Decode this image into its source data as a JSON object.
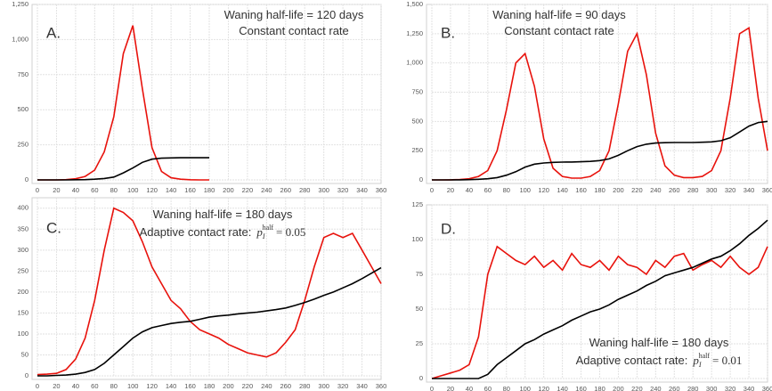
{
  "chart_data": [
    {
      "type": "line",
      "label": "A.",
      "annotations": [
        "Waning half-life = 120 days",
        "Constant contact rate"
      ],
      "x": [
        0,
        10,
        20,
        30,
        40,
        50,
        60,
        70,
        80,
        90,
        100,
        110,
        120,
        130,
        140,
        150,
        160,
        170,
        180
      ],
      "series": [
        {
          "color": "#e8120c",
          "values": [
            0,
            0,
            0,
            2,
            8,
            25,
            70,
            200,
            450,
            900,
            1100,
            650,
            230,
            60,
            15,
            5,
            1,
            0,
            0
          ]
        },
        {
          "color": "#000000",
          "values": [
            0,
            0,
            0,
            0,
            1,
            2,
            5,
            10,
            20,
            50,
            85,
            125,
            148,
            155,
            157,
            158,
            158,
            158,
            158
          ]
        }
      ],
      "xlim": [
        0,
        360
      ],
      "ylim": [
        0,
        1250
      ],
      "xticks": [
        0,
        20,
        40,
        60,
        80,
        100,
        120,
        140,
        160,
        180,
        200,
        220,
        240,
        260,
        280,
        300,
        320,
        340,
        360
      ],
      "yticks": [
        0,
        250,
        500,
        750,
        {
          "value": 1000,
          "label": "1,000"
        },
        {
          "value": 1250,
          "label": "1,250"
        }
      ],
      "grid": true
    },
    {
      "type": "line",
      "label": "B.",
      "annotations": [
        "Waning half-life = 90 days",
        "Constant contact rate"
      ],
      "x": [
        0,
        10,
        20,
        30,
        40,
        50,
        60,
        70,
        80,
        90,
        100,
        110,
        120,
        130,
        140,
        150,
        160,
        170,
        180,
        190,
        200,
        210,
        220,
        230,
        240,
        250,
        260,
        270,
        280,
        290,
        300,
        310,
        320,
        330,
        340,
        350,
        360
      ],
      "series": [
        {
          "color": "#e8120c",
          "values": [
            0,
            0,
            1,
            3,
            10,
            30,
            80,
            250,
            600,
            1000,
            1080,
            800,
            350,
            100,
            30,
            15,
            15,
            30,
            80,
            250,
            650,
            1100,
            1250,
            900,
            400,
            120,
            40,
            20,
            20,
            30,
            80,
            250,
            700,
            1250,
            1300,
            700,
            250
          ]
        },
        {
          "color": "#000000",
          "values": [
            0,
            0,
            0,
            1,
            2,
            5,
            10,
            20,
            40,
            70,
            110,
            135,
            145,
            150,
            152,
            153,
            155,
            158,
            165,
            180,
            210,
            250,
            285,
            305,
            315,
            318,
            320,
            320,
            320,
            322,
            325,
            335,
            360,
            410,
            460,
            490,
            500
          ]
        }
      ],
      "xlim": [
        0,
        360
      ],
      "ylim": [
        0,
        1500
      ],
      "xticks": [
        0,
        20,
        40,
        60,
        80,
        100,
        120,
        140,
        160,
        180,
        200,
        220,
        240,
        260,
        280,
        300,
        320,
        340,
        360
      ],
      "yticks": [
        0,
        250,
        500,
        750,
        {
          "value": 1000,
          "label": "1,000"
        },
        {
          "value": 1250,
          "label": "1,250"
        },
        {
          "value": 1500,
          "label": "1,500"
        }
      ],
      "grid": true
    },
    {
      "type": "line",
      "label": "C.",
      "annotations": [
        "Waning half-life = 180 days",
        "Adaptive contact rate:"
      ],
      "formula": {
        "base": "p",
        "sub": "I",
        "sup": "half",
        "rest": "= 0.05"
      },
      "x": [
        0,
        10,
        20,
        30,
        40,
        50,
        60,
        70,
        80,
        90,
        100,
        110,
        120,
        130,
        140,
        150,
        160,
        170,
        180,
        190,
        200,
        210,
        220,
        230,
        240,
        250,
        260,
        270,
        280,
        290,
        300,
        310,
        320,
        330,
        340,
        350,
        360
      ],
      "series": [
        {
          "color": "#e8120c",
          "values": [
            3,
            4,
            6,
            15,
            40,
            90,
            180,
            300,
            400,
            390,
            370,
            320,
            260,
            220,
            180,
            160,
            130,
            110,
            100,
            90,
            75,
            65,
            55,
            50,
            45,
            55,
            80,
            110,
            180,
            260,
            330,
            340,
            330,
            340,
            300,
            260,
            220
          ]
        },
        {
          "color": "#000000",
          "values": [
            0,
            0,
            1,
            2,
            4,
            8,
            15,
            30,
            50,
            70,
            90,
            105,
            115,
            120,
            125,
            128,
            130,
            135,
            140,
            143,
            145,
            148,
            150,
            152,
            155,
            158,
            162,
            168,
            175,
            183,
            192,
            200,
            210,
            220,
            232,
            245,
            258
          ]
        }
      ],
      "xlim": [
        0,
        360
      ],
      "ylim": [
        0,
        425
      ],
      "xticks": [
        0,
        20,
        40,
        60,
        80,
        100,
        120,
        140,
        160,
        180,
        200,
        220,
        240,
        260,
        280,
        300,
        320,
        340,
        360
      ],
      "yticks": [
        0,
        50,
        100,
        150,
        200,
        250,
        300,
        350,
        400
      ],
      "grid": true
    },
    {
      "type": "line",
      "label": "D.",
      "annotations": [
        "Waning half-life = 180 days",
        "Adaptive contact rate:"
      ],
      "formula": {
        "base": "p",
        "sub": "I",
        "sup": "half",
        "rest": "= 0.01"
      },
      "x": [
        0,
        10,
        20,
        30,
        40,
        50,
        60,
        70,
        80,
        90,
        100,
        110,
        120,
        130,
        140,
        150,
        160,
        170,
        180,
        190,
        200,
        210,
        220,
        230,
        240,
        250,
        260,
        270,
        280,
        290,
        300,
        310,
        320,
        330,
        340,
        350,
        360
      ],
      "series": [
        {
          "color": "#e8120c",
          "values": [
            0,
            2,
            4,
            6,
            10,
            30,
            75,
            95,
            90,
            85,
            82,
            88,
            80,
            85,
            78,
            90,
            82,
            80,
            85,
            78,
            88,
            82,
            80,
            75,
            85,
            80,
            88,
            90,
            78,
            82,
            85,
            80,
            88,
            80,
            75,
            80,
            95
          ]
        },
        {
          "color": "#000000",
          "values": [
            0,
            0,
            0,
            0,
            0,
            0,
            3,
            10,
            15,
            20,
            25,
            28,
            32,
            35,
            38,
            42,
            45,
            48,
            50,
            53,
            57,
            60,
            63,
            67,
            70,
            74,
            76,
            78,
            80,
            83,
            86,
            88,
            92,
            97,
            103,
            108,
            114
          ]
        }
      ],
      "xlim": [
        0,
        360
      ],
      "ylim": [
        0,
        125
      ],
      "xticks": [
        0,
        20,
        40,
        60,
        80,
        100,
        120,
        140,
        160,
        180,
        200,
        220,
        240,
        260,
        280,
        300,
        320,
        340,
        360
      ],
      "yticks": [
        0,
        25,
        50,
        75,
        100,
        125
      ],
      "grid": true
    }
  ]
}
